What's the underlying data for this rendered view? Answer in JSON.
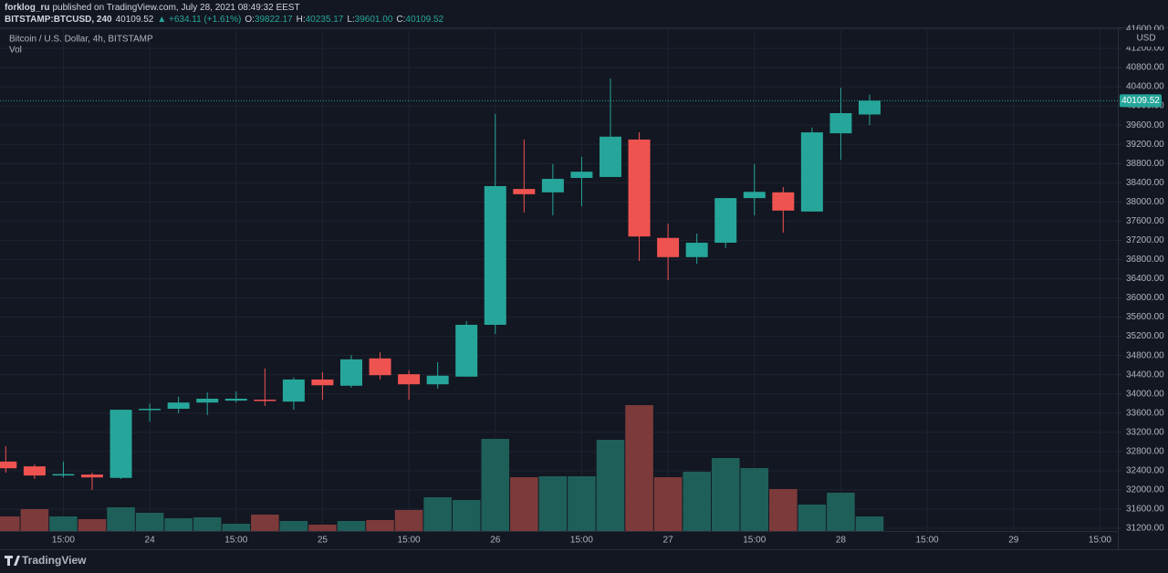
{
  "header": {
    "author": "forklog_ru",
    "published": "published on TradingView.com, July 28, 2021 08:49:32 EEST",
    "symbol": "BITSTAMP:BTCUSD, 240",
    "price": "40109.52",
    "change": "▲ +634.11 (+1.61%)",
    "ohlc": [
      [
        "O:",
        "39822.17"
      ],
      [
        "H:",
        "40235.17"
      ],
      [
        "L:",
        "39601.00"
      ],
      [
        "C:",
        "40109.52"
      ]
    ],
    "footer": "TradingView"
  },
  "chart_data": {
    "type": "candlestick",
    "title": "Bitcoin / U.S. Dollar, 4h, BITSTAMP",
    "volume_label": "Vol",
    "currency": "USD",
    "open": [
      32590,
      32490,
      32300,
      32320,
      32250,
      33670,
      33690,
      33820,
      33860,
      33880,
      33840,
      34300,
      34170,
      34740,
      34410,
      34200,
      34360,
      35440,
      38270,
      38200,
      38500,
      38520,
      39300,
      37250,
      36850,
      37150,
      38080,
      38200,
      37800,
      39430,
      39822.17
    ],
    "high": [
      32910,
      32530,
      32590,
      32360,
      33670,
      33800,
      33940,
      34030,
      34050,
      34530,
      34340,
      34450,
      34810,
      34870,
      34490,
      34660,
      35520,
      39830,
      39300,
      38790,
      38940,
      40570,
      39450,
      37550,
      37340,
      38080,
      38790,
      38310,
      39550,
      40380,
      40235.17
    ],
    "low": [
      32360,
      32230,
      32260,
      32000,
      32230,
      33420,
      33600,
      33560,
      33820,
      33750,
      33670,
      33880,
      34130,
      34300,
      33880,
      34110,
      34360,
      35250,
      37780,
      37720,
      37910,
      38520,
      36770,
      36370,
      36710,
      37040,
      37720,
      37360,
      37800,
      38880,
      39601
    ],
    "close": [
      32450,
      32300,
      32330,
      32260,
      33670,
      33690,
      33820,
      33900,
      33900,
      33860,
      34300,
      34180,
      34720,
      34390,
      34200,
      34380,
      35440,
      38330,
      38160,
      38480,
      38630,
      39360,
      37280,
      36850,
      37150,
      38080,
      38210,
      37820,
      39450,
      39850,
      40109.52
    ],
    "volume": [
      16,
      24,
      16,
      13,
      26,
      20,
      14,
      15,
      8,
      18,
      11,
      7,
      11,
      12,
      23,
      37,
      34,
      101,
      59,
      60,
      60,
      100,
      138,
      59,
      65,
      80,
      69,
      46,
      29,
      42,
      16
    ],
    "up_color": "#26a69a",
    "down_color": "#ef5350",
    "volume_up_color": "#1f5f59",
    "volume_down_color": "#7d3a3a",
    "last_price": 40109.52,
    "ylim": [
      31143,
      41637
    ],
    "yticks": [
      {
        "value": 31200,
        "label": "31200.00"
      },
      {
        "value": 31600,
        "label": "31600.00"
      },
      {
        "value": 32000,
        "label": "32000.00"
      },
      {
        "value": 32400,
        "label": "32400.00"
      },
      {
        "value": 32800,
        "label": "32800.00"
      },
      {
        "value": 33200,
        "label": "33200.00"
      },
      {
        "value": 33600,
        "label": "33600.00"
      },
      {
        "value": 34000,
        "label": "34000.00"
      },
      {
        "value": 34400,
        "label": "34400.00"
      },
      {
        "value": 34800,
        "label": "34800.00"
      },
      {
        "value": 35200,
        "label": "35200.00"
      },
      {
        "value": 35600,
        "label": "35600.00"
      },
      {
        "value": 36000,
        "label": "36000.00"
      },
      {
        "value": 36400,
        "label": "36400.00"
      },
      {
        "value": 36800,
        "label": "36800.00"
      },
      {
        "value": 37200,
        "label": "37200.00"
      },
      {
        "value": 37600,
        "label": "37600.00"
      },
      {
        "value": 38000,
        "label": "38000.00"
      },
      {
        "value": 38400,
        "label": "38400.00"
      },
      {
        "value": 38800,
        "label": "38800.00"
      },
      {
        "value": 39200,
        "label": "39200.00"
      },
      {
        "value": 39600,
        "label": "39600.00"
      },
      {
        "value": 40000,
        "label": "40000.00"
      },
      {
        "value": 40400,
        "label": "40400.00"
      },
      {
        "value": 40800,
        "label": "40800.00"
      },
      {
        "value": 41200,
        "label": "41200.00"
      },
      {
        "value": 41600,
        "label": "41600.00"
      }
    ],
    "volume_ylim": [
      0,
      552
    ],
    "xlim": [
      -0.2,
      38.62
    ],
    "xticks": [
      {
        "value": 2,
        "label": "15:00"
      },
      {
        "value": 5,
        "label": "24"
      },
      {
        "value": 8,
        "label": "15:00"
      },
      {
        "value": 11,
        "label": "25"
      },
      {
        "value": 14,
        "label": "15:00"
      },
      {
        "value": 17,
        "label": "26"
      },
      {
        "value": 20,
        "label": "15:00"
      },
      {
        "value": 23,
        "label": "27"
      },
      {
        "value": 26,
        "label": "15:00"
      },
      {
        "value": 29,
        "label": "28"
      },
      {
        "value": 32,
        "label": "15:00"
      },
      {
        "value": 35,
        "label": "29"
      },
      {
        "value": 38,
        "label": "15:00"
      }
    ],
    "grid": true
  }
}
